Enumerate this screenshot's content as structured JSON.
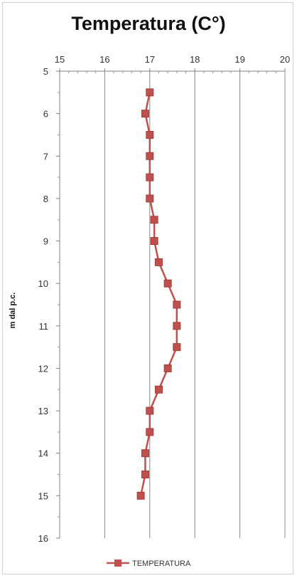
{
  "chart_data": {
    "type": "line",
    "title": "Temperatura (C°)",
    "xlabel": "",
    "ylabel": "m dal p.c.",
    "xlim": [
      15,
      20
    ],
    "ylim": [
      5,
      16
    ],
    "x_axis_position": "top",
    "y_axis_reversed": true,
    "x_ticks": [
      "15",
      "16",
      "17",
      "18",
      "19",
      "20"
    ],
    "y_ticks": [
      "5",
      "6",
      "7",
      "8",
      "9",
      "10",
      "11",
      "12",
      "13",
      "14",
      "15",
      "16"
    ],
    "grid": "vertical",
    "legend_position": "bottom",
    "series": [
      {
        "name": "TEMPERATURA",
        "color": "#c0504d",
        "marker": "square",
        "points": [
          {
            "temperature": 17.0,
            "depth": 5.5
          },
          {
            "temperature": 16.9,
            "depth": 6.0
          },
          {
            "temperature": 17.0,
            "depth": 6.5
          },
          {
            "temperature": 17.0,
            "depth": 7.0
          },
          {
            "temperature": 17.0,
            "depth": 7.5
          },
          {
            "temperature": 17.0,
            "depth": 8.0
          },
          {
            "temperature": 17.1,
            "depth": 8.5
          },
          {
            "temperature": 17.1,
            "depth": 9.0
          },
          {
            "temperature": 17.2,
            "depth": 9.5
          },
          {
            "temperature": 17.4,
            "depth": 10.0
          },
          {
            "temperature": 17.6,
            "depth": 10.5
          },
          {
            "temperature": 17.6,
            "depth": 11.0
          },
          {
            "temperature": 17.6,
            "depth": 11.5
          },
          {
            "temperature": 17.4,
            "depth": 12.0
          },
          {
            "temperature": 17.2,
            "depth": 12.5
          },
          {
            "temperature": 17.0,
            "depth": 13.0
          },
          {
            "temperature": 17.0,
            "depth": 13.5
          },
          {
            "temperature": 16.9,
            "depth": 14.0
          },
          {
            "temperature": 16.9,
            "depth": 14.5
          },
          {
            "temperature": 16.8,
            "depth": 15.0
          }
        ]
      }
    ]
  }
}
